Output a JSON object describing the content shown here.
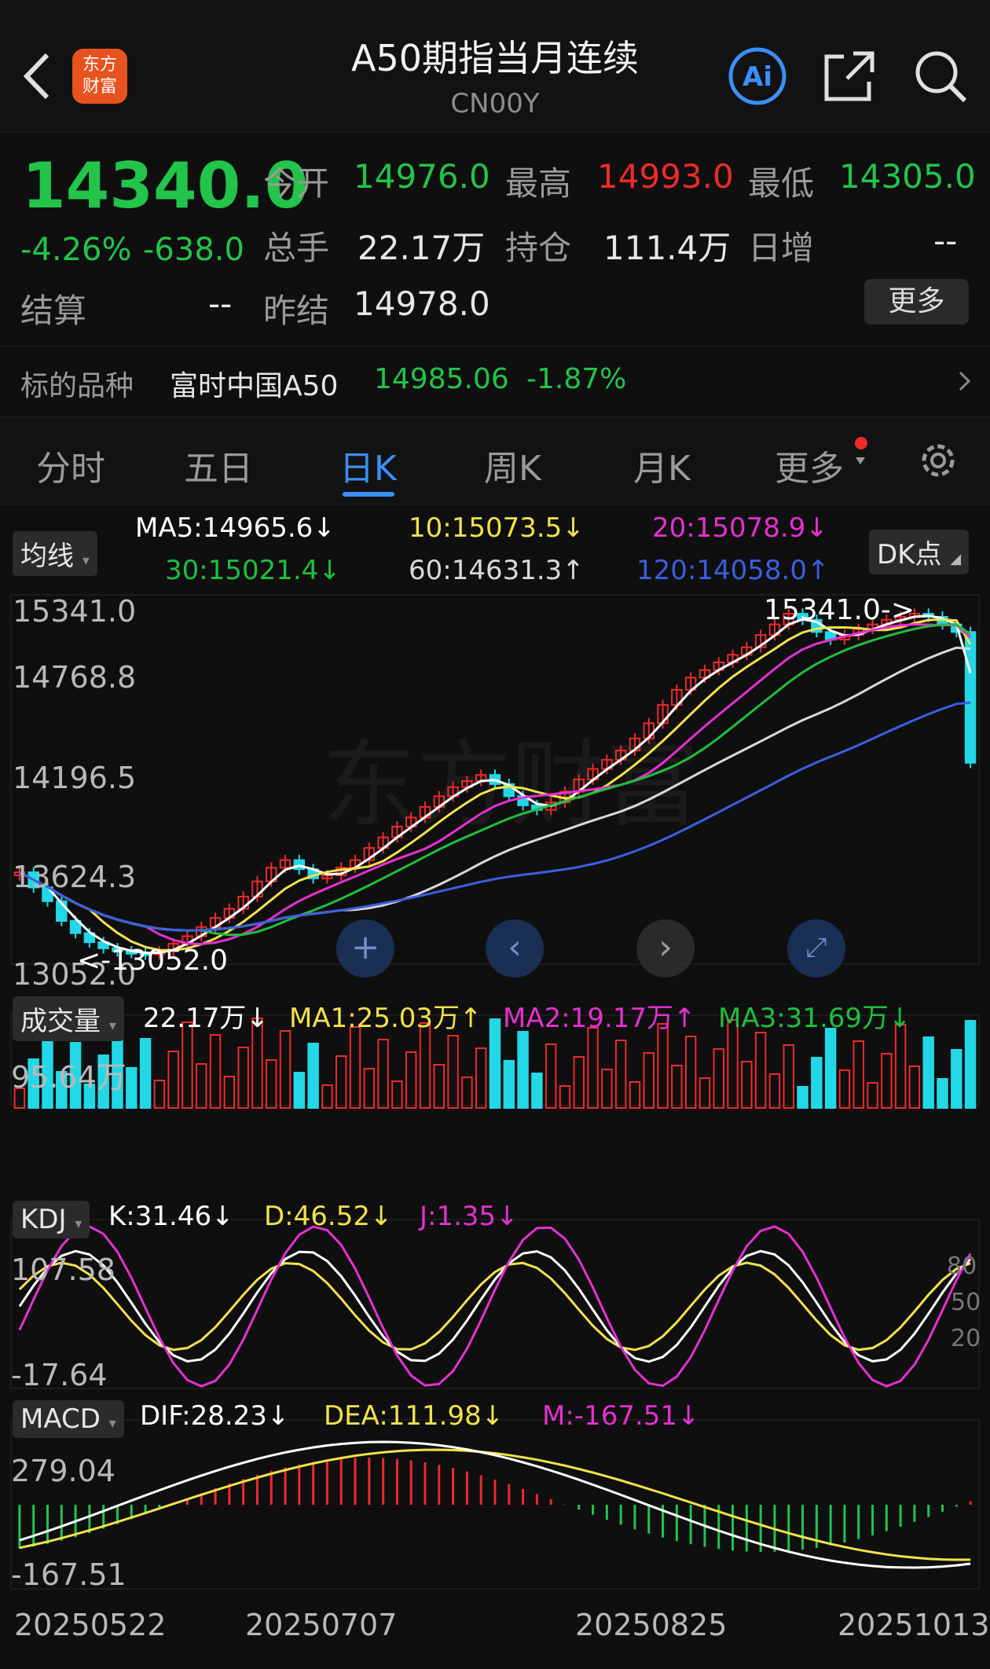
{
  "header": {
    "title": "A50期指当月连续",
    "code": "CN00Y",
    "logo_text": [
      "东方",
      "财富"
    ],
    "ai_label": "Ai"
  },
  "quote": {
    "last": "14340.0",
    "pct": "-4.26%",
    "change": "-638.0",
    "open_label": "今开",
    "open": "14976.0",
    "high_label": "最高",
    "high": "14993.0",
    "low_label": "最低",
    "low": "14305.0",
    "vol_label": "总手",
    "vol": "22.17万",
    "oi_label": "持仓",
    "oi": "111.4万",
    "daily_inc_label": "日增",
    "daily_inc": "--",
    "settle_label": "结算",
    "settle": "--",
    "prev_settle_label": "昨结",
    "prev_settle": "14978.0",
    "more_label": "更多"
  },
  "underlying": {
    "label": "标的品种",
    "name": "富时中国A50",
    "price": "14985.06",
    "pct": "-1.87%"
  },
  "tabs": [
    "分时",
    "五日",
    "日K",
    "周K",
    "月K",
    "更多"
  ],
  "active_tab": "日K",
  "ma_panel": {
    "chip": "均线",
    "ma5": "MA5:14965.6↓",
    "ma10": "10:15073.5↓",
    "ma20": "20:15078.9↓",
    "ma30": "30:15021.4↓",
    "ma60": "60:14631.3↑",
    "ma120": "120:14058.0↑",
    "dk_label": "DK点",
    "axis": [
      "15341.0",
      "14768.8",
      "14196.5",
      "13624.3",
      "13052.0"
    ],
    "high_marker": "15341.0->",
    "low_marker": "<-13052.0",
    "watermark": "东方财富"
  },
  "volume_panel": {
    "chip": "成交量",
    "vol": "22.17万↓",
    "ma1": "MA1:25.03万↑",
    "ma2": "MA2:19.17万↑",
    "ma3": "MA3:31.69万↓",
    "axis_max": "95.64万"
  },
  "kdj_panel": {
    "chip": "KDJ",
    "k": "K:31.46↓",
    "d": "D:46.52↓",
    "j": "J:1.35↓",
    "axis_max": "107.58",
    "axis_min": "-17.64",
    "levels": [
      "80",
      "50",
      "20"
    ]
  },
  "macd_panel": {
    "chip": "MACD",
    "dif": "DIF:28.23↓",
    "dea": "DEA:111.98↓",
    "m": "M:-167.51↓",
    "axis_max": "279.04",
    "axis_min": "-167.51"
  },
  "dates": [
    "20250522",
    "20250707",
    "20250825",
    "20251013"
  ],
  "colors": {
    "up": "#ee2a2a",
    "down": "#22d8e6",
    "price_down": "#22c44a",
    "ma5": "#ffffff",
    "ma10": "#f2e24a",
    "ma20": "#e530d0",
    "ma30": "#1fbf3c",
    "ma60": "#d9d9d9",
    "ma120": "#3b5fe0",
    "accent": "#3b8ff7"
  },
  "chart_data": {
    "type": "candlestick",
    "close_trend": [
      13620,
      13520,
      13430,
      13300,
      13220,
      13160,
      13120,
      13100,
      13090,
      13080,
      13100,
      13150,
      13200,
      13260,
      13320,
      13380,
      13460,
      13560,
      13650,
      13700,
      13640,
      13580,
      13600,
      13650,
      13700,
      13780,
      13850,
      13920,
      13980,
      14050,
      14120,
      14180,
      14220,
      14260,
      14200,
      14120,
      14060,
      14030,
      14080,
      14150,
      14230,
      14300,
      14360,
      14420,
      14500,
      14600,
      14720,
      14820,
      14900,
      14950,
      15000,
      15050,
      15100,
      15180,
      15250,
      15320,
      15280,
      15200,
      15150,
      15180,
      15220,
      15250,
      15280,
      15300,
      15320,
      15300,
      15250,
      15200,
      14340
    ],
    "price_range": [
      13052.0,
      15341.0
    ],
    "high": 15341.0,
    "low": 13052.0
  }
}
